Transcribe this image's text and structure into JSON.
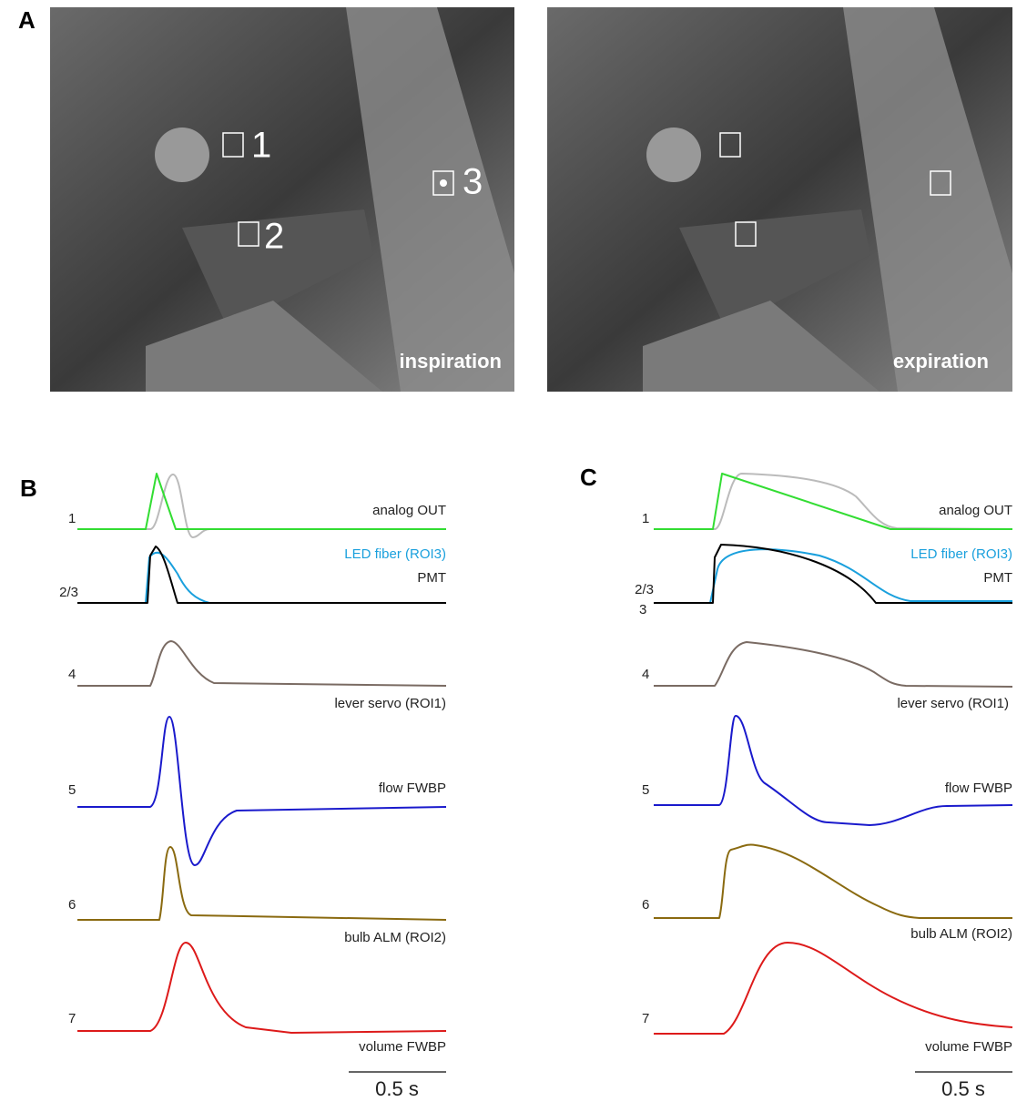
{
  "panels": [
    {
      "label": "A",
      "images": [
        {
          "caption": "inspiration",
          "rois": [
            "1",
            "2",
            "3"
          ]
        },
        {
          "caption": "expiration"
        }
      ]
    },
    {
      "label": "B",
      "traces": [
        {
          "number": "1",
          "name": "analog OUT"
        },
        {
          "number": "2/3",
          "names": [
            "LED fiber (ROI3)",
            "PMT"
          ]
        },
        {
          "number": "4",
          "name": "lever servo (ROI1)"
        },
        {
          "number": "5",
          "name": "flow FWBP"
        },
        {
          "number": "6",
          "name": "bulb ALM (ROI2)"
        },
        {
          "number": "7",
          "name": "volume FWBP"
        }
      ],
      "scale_bar": "0.5 s"
    },
    {
      "label": "C",
      "traces": [
        {
          "number": "1",
          "name": "analog OUT"
        },
        {
          "number": "2/3",
          "extra_number": "3",
          "names": [
            "LED fiber (ROI3)",
            "PMT"
          ]
        },
        {
          "number": "4",
          "name": "lever servo (ROI1)"
        },
        {
          "number": "5",
          "name": "flow FWBP"
        },
        {
          "number": "6",
          "name": "bulb ALM (ROI2)"
        },
        {
          "number": "7",
          "name": "volume FWBP"
        }
      ],
      "scale_bar": "0.5 s"
    }
  ]
}
